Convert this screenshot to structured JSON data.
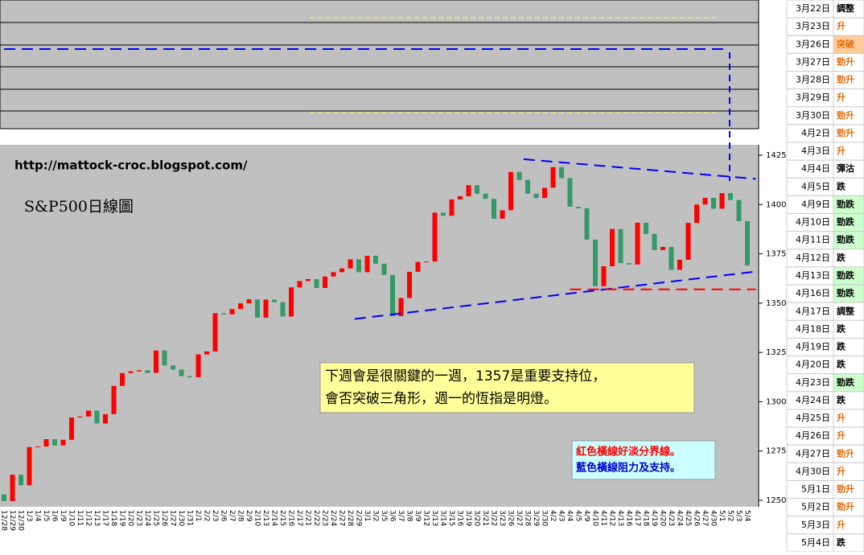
{
  "chart_data": {
    "type": "candlestick",
    "watermark": "http://mattock-croc.blogspot.com/",
    "title": "S&P500日線圖",
    "annotations": [
      {
        "lines": [
          "下週會是很關鍵的一週，1357是重要支持位，",
          "會否突破三角形，週一的恆指是明燈。"
        ]
      },
      {
        "lines": [
          "紅色橫線好淡分界線。",
          "藍色橫線阻力及支持。"
        ],
        "colors": [
          "#ff0000",
          "#0000cc"
        ]
      }
    ],
    "categories": [
      "12/28",
      "12/29",
      "12/30",
      "1/3",
      "1/4",
      "1/5",
      "1/6",
      "1/9",
      "1/10",
      "1/11",
      "1/12",
      "1/13",
      "1/17",
      "1/18",
      "1/19",
      "1/20",
      "1/23",
      "1/24",
      "1/25",
      "1/26",
      "1/27",
      "1/30",
      "1/31",
      "2/1",
      "2/2",
      "2/3",
      "2/6",
      "2/7",
      "2/8",
      "2/9",
      "2/10",
      "2/13",
      "2/14",
      "2/15",
      "2/16",
      "2/17",
      "2/21",
      "2/22",
      "2/23",
      "2/24",
      "2/27",
      "2/28",
      "2/29",
      "3/1",
      "3/2",
      "3/5",
      "3/6",
      "3/7",
      "3/8",
      "3/9",
      "3/12",
      "3/13",
      "3/14",
      "3/15",
      "3/16",
      "3/19",
      "3/20",
      "3/21",
      "3/22",
      "3/23",
      "3/26",
      "3/27",
      "3/28",
      "3/29",
      "3/30",
      "4/2",
      "4/3",
      "4/4",
      "4/5",
      "4/9",
      "4/10",
      "4/11",
      "4/12",
      "4/13",
      "4/16",
      "4/17",
      "4/18",
      "4/19",
      "4/20",
      "4/23",
      "4/24",
      "4/25",
      "4/26",
      "4/27",
      "4/30",
      "5/1",
      "5/2",
      "5/3",
      "5/4"
    ],
    "open": [
      1253,
      1249.6,
      1263,
      1257.6,
      1277,
      1277.3,
      1281,
      1277.8,
      1280.7,
      1292,
      1292.5,
      1295.5,
      1289,
      1293.7,
      1308,
      1314.5,
      1315.4,
      1316,
      1314.6,
      1326,
      1318.4,
      1316.3,
      1313,
      1312.4,
      1324,
      1325.5,
      1344.9,
      1344.3,
      1347,
      1349.9,
      1351.9,
      1342.6,
      1351.8,
      1350.5,
      1343.2,
      1358,
      1361.2,
      1362.2,
      1357.7,
      1363.5,
      1365.7,
      1367.6,
      1372.2,
      1365.7,
      1374,
      1370,
      1364.3,
      1343.4,
      1352.6,
      1365.9,
      1370.9,
      1371.1,
      1395.9,
      1394.3,
      1402.6,
      1404.2,
      1409.8,
      1405.5,
      1402.9,
      1392.8,
      1397.1,
      1416.5,
      1412.5,
      1405.5,
      1403.3,
      1408.5,
      1419,
      1413.4,
      1398.9,
      1398.1,
      1382.2,
      1358.6,
      1368.7,
      1387.6,
      1370.3,
      1369.6,
      1390.8,
      1385.1,
      1376.9,
      1378.5,
      1366.9,
      1372,
      1390.7,
      1400,
      1403.4,
      1397.9,
      1405.8,
      1402.3,
      1391.6
    ],
    "close": [
      1249.6,
      1263,
      1257.6,
      1277,
      1277.3,
      1281,
      1277.8,
      1280.7,
      1292,
      1292.5,
      1295.5,
      1289,
      1293.7,
      1308,
      1314.5,
      1315.4,
      1316,
      1314.6,
      1326,
      1318.4,
      1316.3,
      1313,
      1312.4,
      1324,
      1325.5,
      1344.9,
      1344.3,
      1347,
      1349.9,
      1351.9,
      1342.6,
      1351.8,
      1350.5,
      1343.2,
      1358,
      1361.2,
      1362.2,
      1357.7,
      1363.5,
      1365.7,
      1367.6,
      1372.2,
      1365.7,
      1374,
      1370,
      1364.3,
      1343.4,
      1352.6,
      1365.9,
      1370.9,
      1371.1,
      1395.9,
      1394.3,
      1402.6,
      1404.2,
      1409.8,
      1405.5,
      1402.9,
      1392.8,
      1397.1,
      1416.5,
      1412.5,
      1405.5,
      1403.3,
      1408.5,
      1419,
      1413.4,
      1398.9,
      1398.1,
      1382.2,
      1358.6,
      1368.7,
      1387.6,
      1370.3,
      1369.6,
      1390.8,
      1385.1,
      1376.9,
      1378.5,
      1366.9,
      1372,
      1390.7,
      1400,
      1403.4,
      1397.9,
      1405.8,
      1402.3,
      1391.6,
      1369.1
    ],
    "up_color": "#ff0000",
    "down_color": "#339966",
    "ylim": [
      1250,
      1425
    ],
    "yticks": [
      1250,
      1275,
      1300,
      1325,
      1350,
      1375,
      1400,
      1425
    ],
    "trend_lines": [
      {
        "from": [
          61.5,
          1423
        ],
        "to": [
          89,
          1413
        ],
        "color": "#0000ff"
      },
      {
        "from": [
          41.5,
          1342
        ],
        "to": [
          89,
          1366
        ],
        "color": "#0000ff"
      },
      {
        "from": [
          67,
          1357
        ],
        "to": [
          89,
          1357
        ],
        "color": "#ff0000"
      }
    ]
  },
  "side_table": {
    "signal_colors": {
      "升": "#e46c0a",
      "勁升": "#e46c0a",
      "突破": "#e46c0a",
      "勁跌": "#000000",
      "跌": "#000000",
      "調整": "#000000",
      "彈沽": "#000000"
    },
    "signal_backgrounds": {
      "勁跌": "#ccffcc",
      "突破": "#ffcc99"
    },
    "rows": [
      {
        "date": "3月22日",
        "signal": "調整"
      },
      {
        "date": "3月23日",
        "signal": "升"
      },
      {
        "date": "3月26日",
        "signal": "突破"
      },
      {
        "date": "3月27日",
        "signal": "勁升"
      },
      {
        "date": "3月28日",
        "signal": "勁升"
      },
      {
        "date": "3月29日",
        "signal": "升"
      },
      {
        "date": "3月30日",
        "signal": "勁升"
      },
      {
        "date": "4月2日",
        "signal": "勁升"
      },
      {
        "date": "4月3日",
        "signal": "升"
      },
      {
        "date": "4月4日",
        "signal": "彈沽"
      },
      {
        "date": "4月5日",
        "signal": "跌"
      },
      {
        "date": "4月9日",
        "signal": "勁跌"
      },
      {
        "date": "4月10日",
        "signal": "勁跌"
      },
      {
        "date": "4月11日",
        "signal": "勁跌"
      },
      {
        "date": "4月12日",
        "signal": "跌"
      },
      {
        "date": "4月13日",
        "signal": "勁跌"
      },
      {
        "date": "4月16日",
        "signal": "勁跌"
      },
      {
        "date": "4月17日",
        "signal": "調整"
      },
      {
        "date": "4月18日",
        "signal": "跌"
      },
      {
        "date": "4月19日",
        "signal": "跌"
      },
      {
        "date": "4月20日",
        "signal": "跌"
      },
      {
        "date": "4月23日",
        "signal": "勁跌"
      },
      {
        "date": "4月24日",
        "signal": "跌"
      },
      {
        "date": "4月25日",
        "signal": "升"
      },
      {
        "date": "4月26日",
        "signal": "升"
      },
      {
        "date": "4月27日",
        "signal": "勁升"
      },
      {
        "date": "4月30日",
        "signal": "升"
      },
      {
        "date": "5月1日",
        "signal": "勁升"
      },
      {
        "date": "5月2日",
        "signal": "勁升"
      },
      {
        "date": "5月3日",
        "signal": "升"
      },
      {
        "date": "5月4日",
        "signal": "跌"
      }
    ]
  }
}
